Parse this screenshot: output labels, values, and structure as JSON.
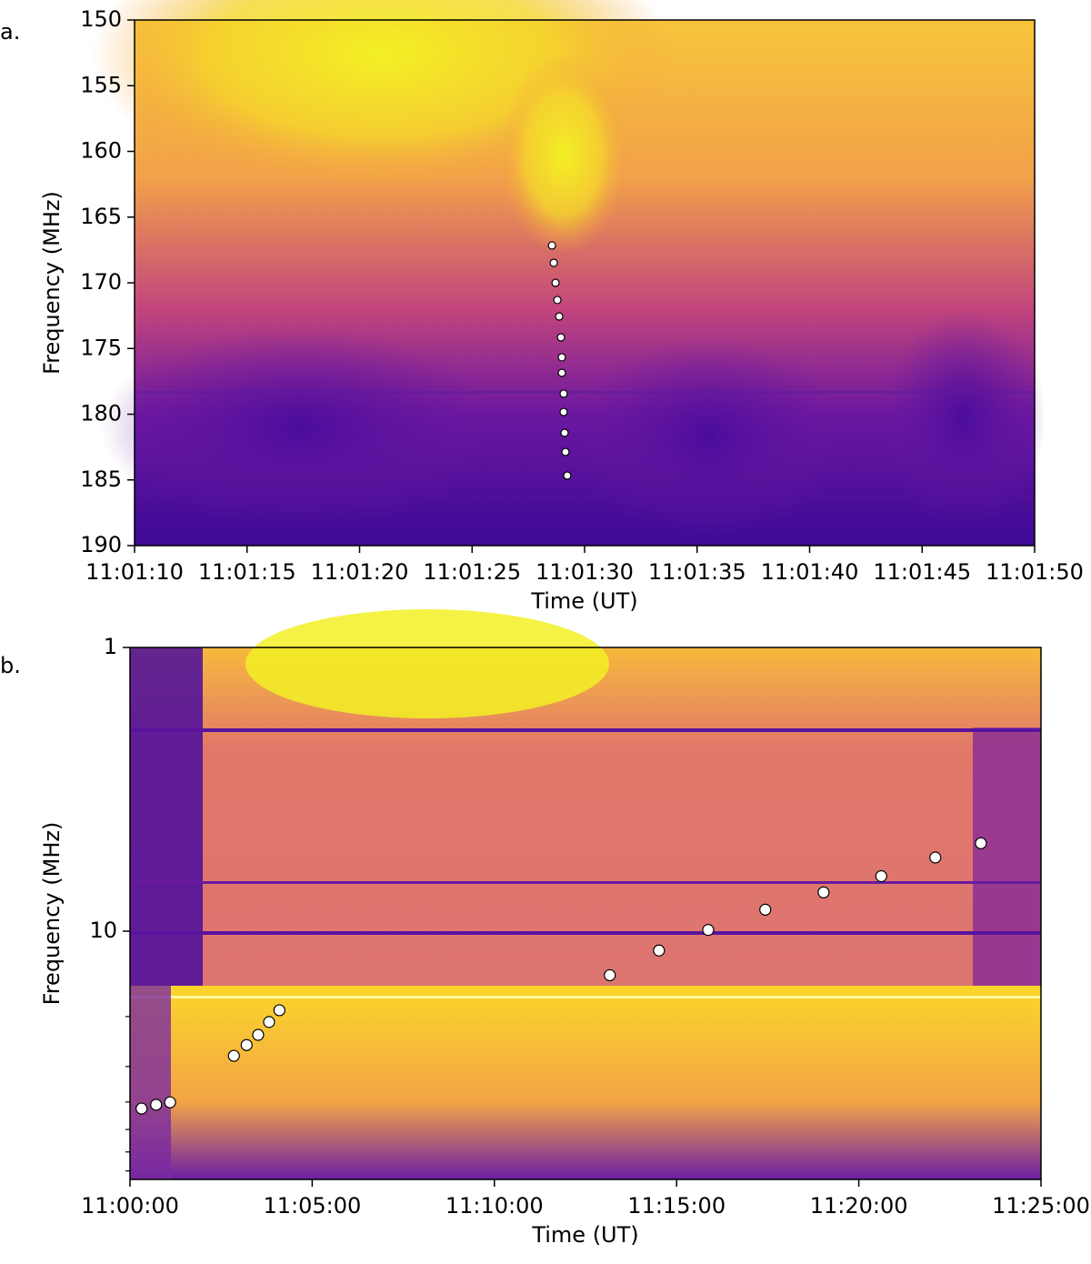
{
  "chart_data": [
    {
      "type": "scatter",
      "label": "a.",
      "xlabel": "Time (UT)",
      "ylabel": "Frequency (MHz)",
      "xlim": [
        39670,
        39710
      ],
      "ylim": [
        190,
        150
      ],
      "yscale": "linear",
      "xticks": [
        {
          "value": 39670,
          "label": "11:01:10"
        },
        {
          "value": 39675,
          "label": "11:01:15"
        },
        {
          "value": 39680,
          "label": "11:01:20"
        },
        {
          "value": 39685,
          "label": "11:01:25"
        },
        {
          "value": 39690,
          "label": "11:01:30"
        },
        {
          "value": 39695,
          "label": "11:01:35"
        },
        {
          "value": 39700,
          "label": "11:01:40"
        },
        {
          "value": 39705,
          "label": "11:01:45"
        },
        {
          "value": 39710,
          "label": "11:01:50"
        }
      ],
      "yticks": [
        150,
        155,
        160,
        165,
        170,
        175,
        180,
        185,
        190
      ],
      "marker_color": "#ffffff",
      "marker_size": 4,
      "x": [
        39688.55,
        39688.63,
        39688.71,
        39688.79,
        39688.87,
        39688.95,
        39688.99,
        39688.99,
        39689.07,
        39689.07,
        39689.11,
        39689.15,
        39689.23
      ],
      "values": [
        167.16,
        168.48,
        170.0,
        171.31,
        172.56,
        174.15,
        175.67,
        176.85,
        178.44,
        179.83,
        181.42,
        182.87,
        184.67
      ]
    },
    {
      "type": "scatter",
      "label": "b.",
      "xlabel": "Time (UT)",
      "ylabel": "Frequency (MHz)",
      "xlim": [
        39600,
        41100
      ],
      "ylim": [
        75,
        1
      ],
      "yscale": "log",
      "xticks": [
        {
          "value": 39600,
          "label": "11:00:00"
        },
        {
          "value": 39900,
          "label": "11:05:00"
        },
        {
          "value": 40200,
          "label": "11:10:00"
        },
        {
          "value": 40500,
          "label": "11:15:00"
        },
        {
          "value": 40800,
          "label": "11:20:00"
        },
        {
          "value": 41100,
          "label": "11:25:00"
        }
      ],
      "yticks": [
        1,
        10
      ],
      "yminorticks": [
        20,
        30,
        40,
        50,
        60,
        70
      ],
      "marker_color": "#ffffff",
      "marker_size": 6,
      "x": [
        39619,
        39643,
        39666,
        39771,
        39792,
        39811,
        39829,
        39846,
        40390,
        40471,
        40552,
        40646,
        40742,
        40837,
        40926,
        41001
      ],
      "values": [
        42.2,
        40.9,
        40.1,
        27.5,
        25.2,
        23.2,
        20.9,
        19.0,
        14.3,
        11.7,
        9.9,
        8.4,
        7.3,
        6.4,
        5.5,
        4.9
      ]
    }
  ]
}
